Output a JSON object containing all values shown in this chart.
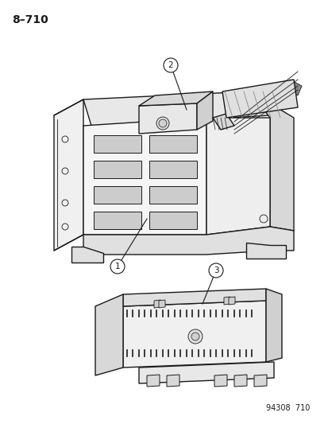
{
  "title": "8–710",
  "background_color": "#ffffff",
  "line_color": "#1a1a1a",
  "page_ref": "94308  710",
  "figsize": [
    4.14,
    5.33
  ],
  "dpi": 100
}
